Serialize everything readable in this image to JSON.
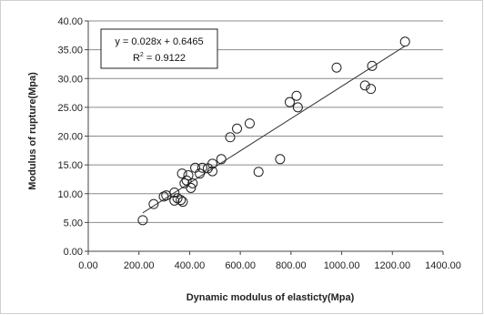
{
  "chart_data": {
    "type": "scatter",
    "xlabel": "Dynamic modulus of elasticty(Mpa)",
    "ylabel": "Modulus of rupture(Mpa)",
    "xlim": [
      0,
      1400
    ],
    "ylim": [
      0,
      40
    ],
    "x_ticks": [
      "0.00",
      "200.00",
      "400.00",
      "600.00",
      "800.00",
      "1000.00",
      "1200.00",
      "1400.00"
    ],
    "y_ticks": [
      "0.00",
      "5.00",
      "10.00",
      "15.00",
      "20.00",
      "25.00",
      "30.00",
      "35.00",
      "40.00"
    ],
    "grid": "horizontal",
    "legend": "none",
    "trendline": {
      "equation": "y = 0.028x + 0.6465",
      "r2_prefix": "R",
      "r2_exponent": "2",
      "r2_value": " = 0.9122",
      "slope": 0.028,
      "intercept": 0.6465,
      "x_range": [
        215,
        1250
      ]
    },
    "points": [
      {
        "x": 215,
        "y": 5.4
      },
      {
        "x": 258,
        "y": 8.2
      },
      {
        "x": 298,
        "y": 9.5
      },
      {
        "x": 308,
        "y": 9.7
      },
      {
        "x": 340,
        "y": 10.2
      },
      {
        "x": 340,
        "y": 8.8
      },
      {
        "x": 352,
        "y": 9.2
      },
      {
        "x": 365,
        "y": 8.9
      },
      {
        "x": 370,
        "y": 13.5
      },
      {
        "x": 373,
        "y": 8.6
      },
      {
        "x": 380,
        "y": 11.8
      },
      {
        "x": 388,
        "y": 12.3
      },
      {
        "x": 395,
        "y": 13.2
      },
      {
        "x": 405,
        "y": 11.0
      },
      {
        "x": 412,
        "y": 11.8
      },
      {
        "x": 422,
        "y": 14.5
      },
      {
        "x": 440,
        "y": 13.5
      },
      {
        "x": 450,
        "y": 14.5
      },
      {
        "x": 472,
        "y": 14.4
      },
      {
        "x": 490,
        "y": 13.9
      },
      {
        "x": 490,
        "y": 15.2
      },
      {
        "x": 525,
        "y": 16.0
      },
      {
        "x": 560,
        "y": 19.8
      },
      {
        "x": 587,
        "y": 21.3
      },
      {
        "x": 637,
        "y": 22.2
      },
      {
        "x": 672,
        "y": 13.8
      },
      {
        "x": 757,
        "y": 16.0
      },
      {
        "x": 795,
        "y": 25.9
      },
      {
        "x": 822,
        "y": 27.0
      },
      {
        "x": 827,
        "y": 25.0
      },
      {
        "x": 980,
        "y": 31.9
      },
      {
        "x": 1092,
        "y": 28.8
      },
      {
        "x": 1115,
        "y": 28.2
      },
      {
        "x": 1120,
        "y": 32.2
      },
      {
        "x": 1250,
        "y": 36.4
      }
    ]
  }
}
